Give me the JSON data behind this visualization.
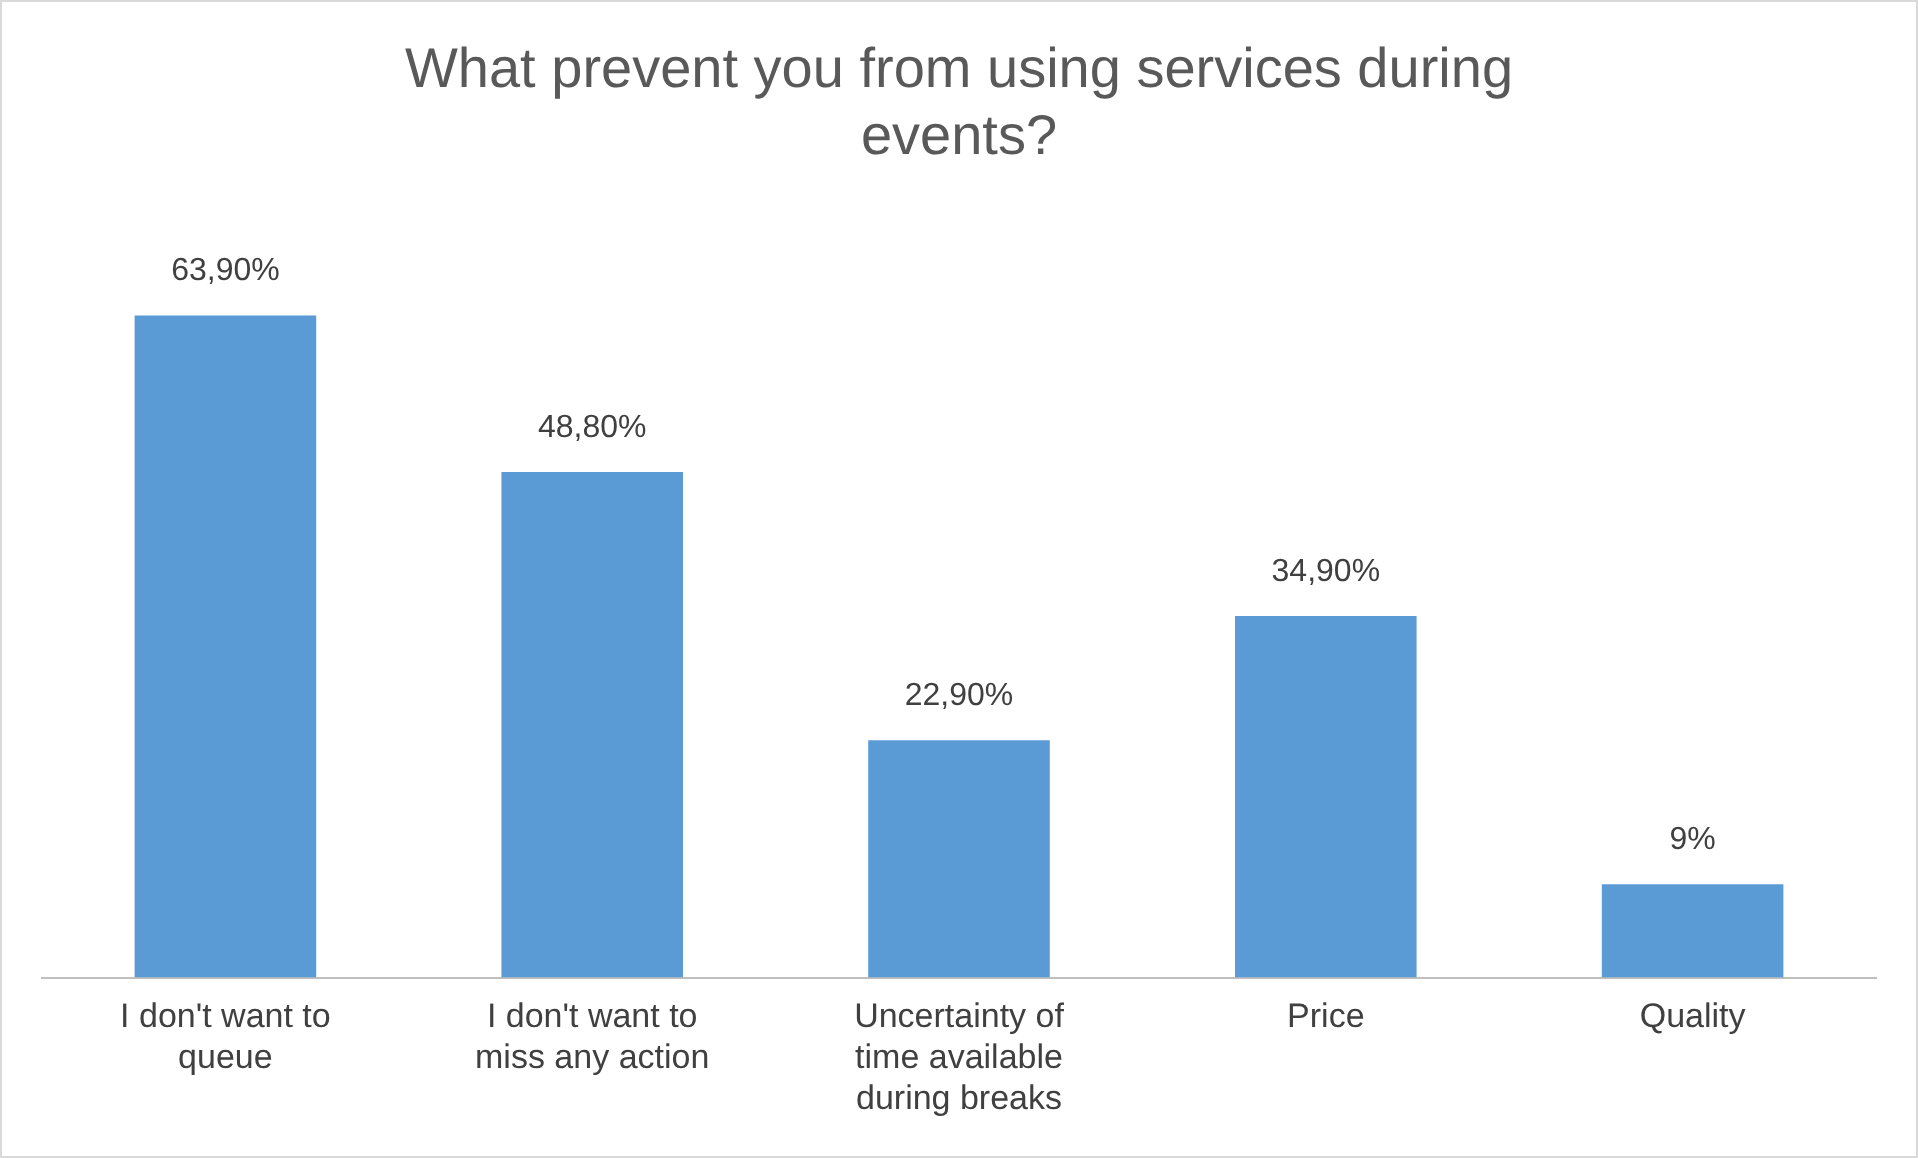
{
  "chart_data": {
    "type": "bar",
    "title": "What prevent you from using services during events?",
    "categories": [
      "I don't want to queue",
      "I don't want to miss any action",
      "Uncertainty of time available during breaks",
      "Price",
      "Quality"
    ],
    "values": [
      63.9,
      48.8,
      22.9,
      34.9,
      9
    ],
    "value_labels": [
      "63,90%",
      "48,80%",
      "22,90%",
      "34,90%",
      "9%"
    ],
    "color": "#5b9bd5",
    "grid": false,
    "legend": false
  }
}
